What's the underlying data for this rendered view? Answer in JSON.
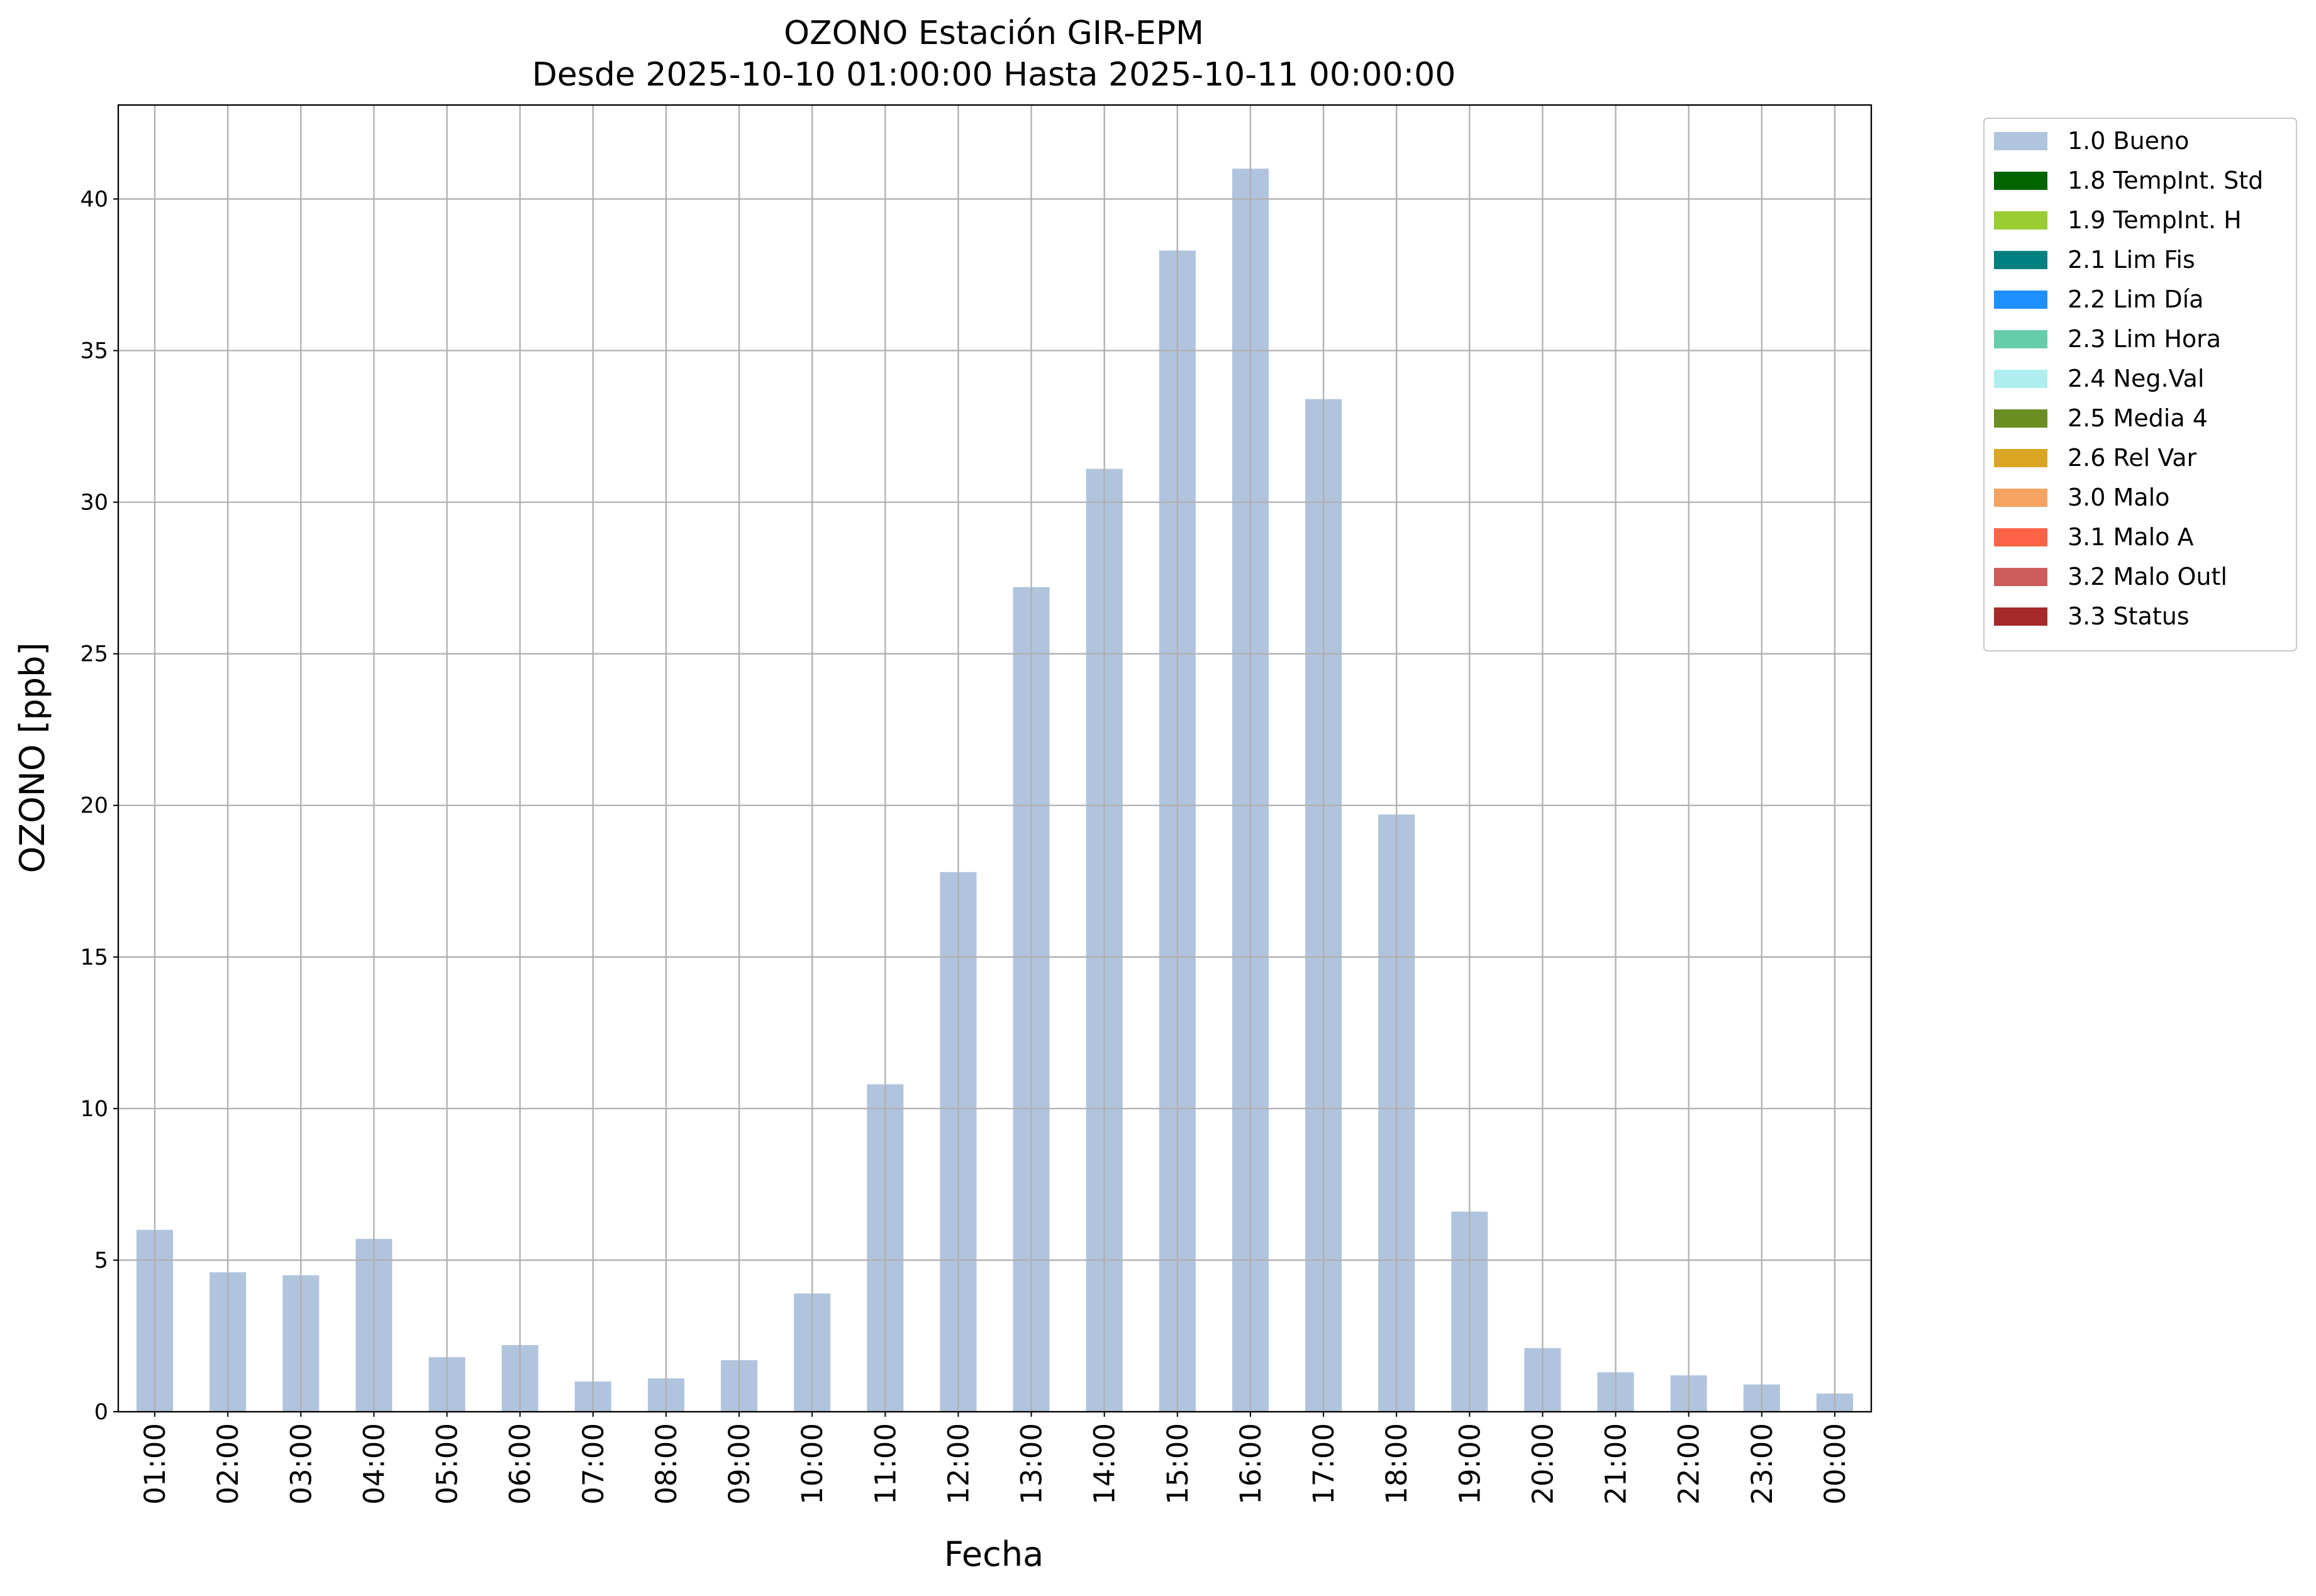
{
  "chart_data": {
    "type": "bar",
    "title": "OZONO Estación GIR-EPM",
    "subtitle": "Desde 2025-10-10 01:00:00 Hasta 2025-10-11 00:00:00",
    "x_label": "Fecha",
    "y_label": "OZONO [ppb]",
    "categories": [
      "01:00",
      "02:00",
      "03:00",
      "04:00",
      "05:00",
      "06:00",
      "07:00",
      "08:00",
      "09:00",
      "10:00",
      "11:00",
      "12:00",
      "13:00",
      "14:00",
      "15:00",
      "16:00",
      "17:00",
      "18:00",
      "19:00",
      "20:00",
      "21:00",
      "22:00",
      "23:00",
      "00:00"
    ],
    "series": [
      {
        "name": "1.0 Bueno",
        "color": "#b0c4de",
        "values": [
          6.0,
          4.6,
          4.5,
          5.7,
          1.8,
          2.2,
          1.0,
          1.1,
          1.7,
          3.9,
          10.8,
          17.8,
          27.2,
          31.1,
          38.3,
          41.0,
          33.4,
          19.7,
          6.6,
          2.1,
          1.3,
          1.2,
          0.9,
          0.6
        ]
      },
      {
        "name": "1.8 TempInt. Std",
        "color": "#006400",
        "values": [
          null,
          null,
          null,
          null,
          null,
          null,
          null,
          null,
          null,
          null,
          null,
          null,
          null,
          null,
          null,
          null,
          null,
          null,
          null,
          null,
          null,
          null,
          null,
          null
        ]
      },
      {
        "name": "1.9 TempInt. H",
        "color": "#9acd32",
        "values": [
          null,
          null,
          null,
          null,
          null,
          null,
          null,
          null,
          null,
          null,
          null,
          null,
          null,
          null,
          null,
          null,
          null,
          null,
          null,
          null,
          null,
          null,
          null,
          null
        ]
      },
      {
        "name": "2.1 Lim Fis",
        "color": "#008080",
        "values": [
          null,
          null,
          null,
          null,
          null,
          null,
          null,
          null,
          null,
          null,
          null,
          null,
          null,
          null,
          null,
          null,
          null,
          null,
          null,
          null,
          null,
          null,
          null,
          null
        ]
      },
      {
        "name": "2.2 Lim Día",
        "color": "#1e90ff",
        "values": [
          null,
          null,
          null,
          null,
          null,
          null,
          null,
          null,
          null,
          null,
          null,
          null,
          null,
          null,
          null,
          null,
          null,
          null,
          null,
          null,
          null,
          null,
          null,
          null
        ]
      },
      {
        "name": "2.3 Lim Hora",
        "color": "#66cdaa",
        "values": [
          null,
          null,
          null,
          null,
          null,
          null,
          null,
          null,
          null,
          null,
          null,
          null,
          null,
          null,
          null,
          null,
          null,
          null,
          null,
          null,
          null,
          null,
          null,
          null
        ]
      },
      {
        "name": "2.4 Neg.Val",
        "color": "#afeeee",
        "values": [
          null,
          null,
          null,
          null,
          null,
          null,
          null,
          null,
          null,
          null,
          null,
          null,
          null,
          null,
          null,
          null,
          null,
          null,
          null,
          null,
          null,
          null,
          null,
          null
        ]
      },
      {
        "name": "2.5 Media 4",
        "color": "#6b8e23",
        "values": [
          null,
          null,
          null,
          null,
          null,
          null,
          null,
          null,
          null,
          null,
          null,
          null,
          null,
          null,
          null,
          null,
          null,
          null,
          null,
          null,
          null,
          null,
          null,
          null
        ]
      },
      {
        "name": "2.6 Rel Var",
        "color": "#daa520",
        "values": [
          null,
          null,
          null,
          null,
          null,
          null,
          null,
          null,
          null,
          null,
          null,
          null,
          null,
          null,
          null,
          null,
          null,
          null,
          null,
          null,
          null,
          null,
          null,
          null
        ]
      },
      {
        "name": "3.0 Malo",
        "color": "#f4a460",
        "values": [
          null,
          null,
          null,
          null,
          null,
          null,
          null,
          null,
          null,
          null,
          null,
          null,
          null,
          null,
          null,
          null,
          null,
          null,
          null,
          null,
          null,
          null,
          null,
          null
        ]
      },
      {
        "name": "3.1 Malo A",
        "color": "#ff6347",
        "values": [
          null,
          null,
          null,
          null,
          null,
          null,
          null,
          null,
          null,
          null,
          null,
          null,
          null,
          null,
          null,
          null,
          null,
          null,
          null,
          null,
          null,
          null,
          null,
          null
        ]
      },
      {
        "name": "3.2 Malo Outl",
        "color": "#cd5c5c",
        "values": [
          null,
          null,
          null,
          null,
          null,
          null,
          null,
          null,
          null,
          null,
          null,
          null,
          null,
          null,
          null,
          null,
          null,
          null,
          null,
          null,
          null,
          null,
          null,
          null
        ]
      },
      {
        "name": "3.3 Status",
        "color": "#a52a2a",
        "values": [
          null,
          null,
          null,
          null,
          null,
          null,
          null,
          null,
          null,
          null,
          null,
          null,
          null,
          null,
          null,
          null,
          null,
          null,
          null,
          null,
          null,
          null,
          null,
          null
        ]
      }
    ],
    "ylim": [
      0,
      43.1
    ],
    "yticks": [
      0,
      5,
      10,
      15,
      20,
      25,
      30,
      35,
      40
    ],
    "grid": true,
    "legend": "outside-upper-right"
  }
}
